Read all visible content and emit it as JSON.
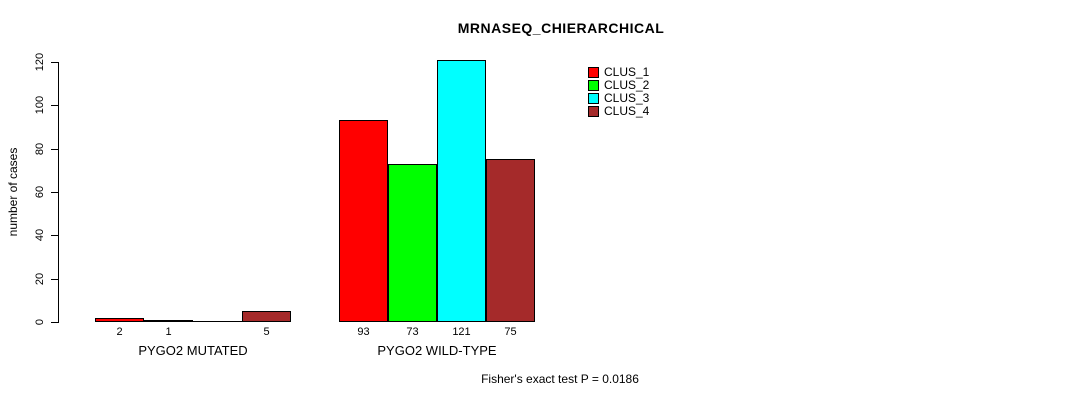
{
  "chart_data": {
    "type": "bar",
    "title": "MRNASEQ_CHIERARCHICAL",
    "ylabel": "number of cases",
    "xlabel": "",
    "ylim": [
      0,
      120
    ],
    "yticks": [
      0,
      20,
      40,
      60,
      80,
      100,
      120
    ],
    "grid": false,
    "legend_position": "top-right-inside",
    "groups": [
      "PYGO2 MUTATED",
      "PYGO2 WILD-TYPE"
    ],
    "series": [
      {
        "name": "CLUS_1",
        "color": "#FF0000",
        "values": [
          2,
          93
        ]
      },
      {
        "name": "CLUS_2",
        "color": "#00FF00",
        "values": [
          1,
          73
        ]
      },
      {
        "name": "CLUS_3",
        "color": "#00FFFF",
        "values": [
          0,
          121
        ]
      },
      {
        "name": "CLUS_4",
        "color": "#A52A2A",
        "values": [
          5,
          75
        ]
      }
    ],
    "bar_labels": [
      [
        "2",
        "1",
        "",
        "5"
      ],
      [
        "93",
        "73",
        "121",
        "75"
      ]
    ],
    "annotation": "Fisher's exact test P = 0.0186"
  }
}
